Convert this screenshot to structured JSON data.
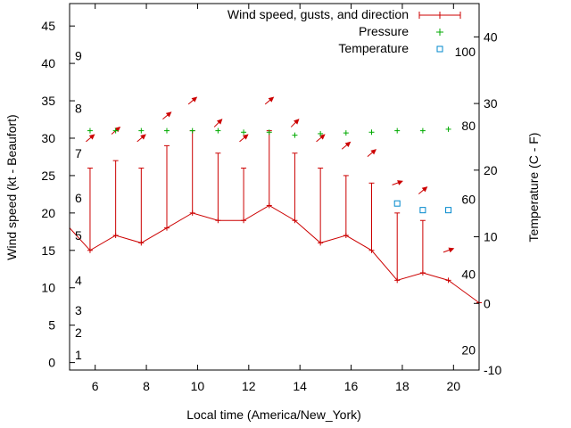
{
  "chart_data": {
    "type": "line",
    "xlabel": "Local time (America/New_York)",
    "ylabel": "Wind speed (kt - Beaufort)",
    "y2label": "Temperature (C - F)",
    "xlim": [
      5,
      21
    ],
    "ylim": [
      -1,
      48
    ],
    "y2lim": [
      -10,
      45
    ],
    "x_ticks": [
      6,
      8,
      10,
      12,
      14,
      16,
      18,
      20
    ],
    "y_ticks": [
      0,
      5,
      10,
      15,
      20,
      25,
      30,
      35,
      40,
      45
    ],
    "y2_ticks": [
      -10,
      0,
      10,
      20,
      30,
      40
    ],
    "beaufort_labels": [
      {
        "label": "1",
        "y": 1
      },
      {
        "label": "2",
        "y": 4
      },
      {
        "label": "3",
        "y": 7
      },
      {
        "label": "4",
        "y": 11
      },
      {
        "label": "5",
        "y": 17
      },
      {
        "label": "6",
        "y": 22
      },
      {
        "label": "7",
        "y": 28
      },
      {
        "label": "8",
        "y": 34
      },
      {
        "label": "9",
        "y": 41
      }
    ],
    "fahrenheit_labels": [
      {
        "label": "20",
        "y2": -7
      },
      {
        "label": "40",
        "y2": 4.4
      },
      {
        "label": "60",
        "y2": 15.6
      },
      {
        "label": "80",
        "y2": 26.7
      },
      {
        "label": "100",
        "y2": 37.8
      }
    ],
    "legend": {
      "position": "top-right",
      "entries": [
        "Wind speed, gusts, and direction",
        "Pressure",
        "Temperature"
      ]
    },
    "series": [
      {
        "name": "Wind speed, gusts, and direction",
        "color": "#cc0000",
        "x": [
          4.8,
          5.8,
          6.8,
          7.8,
          8.8,
          9.8,
          10.8,
          11.8,
          12.8,
          13.8,
          14.8,
          15.8,
          16.8,
          17.8,
          18.8,
          19.8,
          21
        ],
        "speed": [
          18,
          15,
          17,
          16,
          18,
          20,
          19,
          19,
          21,
          19,
          16,
          17,
          15,
          11,
          12,
          11,
          8
        ],
        "gust": [
          null,
          26,
          27,
          26,
          29,
          31,
          28,
          26,
          31,
          28,
          26,
          25,
          24,
          20,
          19,
          null,
          null
        ],
        "direction_x": [
          5.8,
          6.8,
          7.8,
          8.8,
          9.8,
          10.8,
          11.8,
          12.8,
          13.8,
          14.8,
          15.8,
          16.8,
          17.8,
          18.8,
          19.8
        ],
        "direction_y": [
          30,
          31,
          30,
          33,
          35,
          32,
          30,
          35,
          32,
          30,
          29,
          28,
          24,
          23,
          15
        ],
        "direction_deg": [
          230,
          230,
          230,
          230,
          230,
          225,
          230,
          230,
          225,
          230,
          230,
          230,
          250,
          230,
          250
        ]
      },
      {
        "name": "Pressure",
        "color": "#00aa00",
        "x": [
          5.8,
          6.8,
          7.8,
          8.8,
          9.8,
          10.8,
          11.8,
          12.8,
          13.8,
          14.8,
          15.8,
          16.8,
          17.8,
          18.8,
          19.8
        ],
        "y": [
          31,
          31,
          31,
          31,
          31,
          31,
          30.8,
          30.8,
          30.4,
          30.6,
          30.7,
          30.8,
          31,
          31,
          31.2
        ]
      },
      {
        "name": "Temperature",
        "color": "#0088cc",
        "axis": "y2",
        "x": [
          17.8,
          18.8,
          19.8
        ],
        "y": [
          15,
          14,
          14
        ]
      }
    ]
  }
}
